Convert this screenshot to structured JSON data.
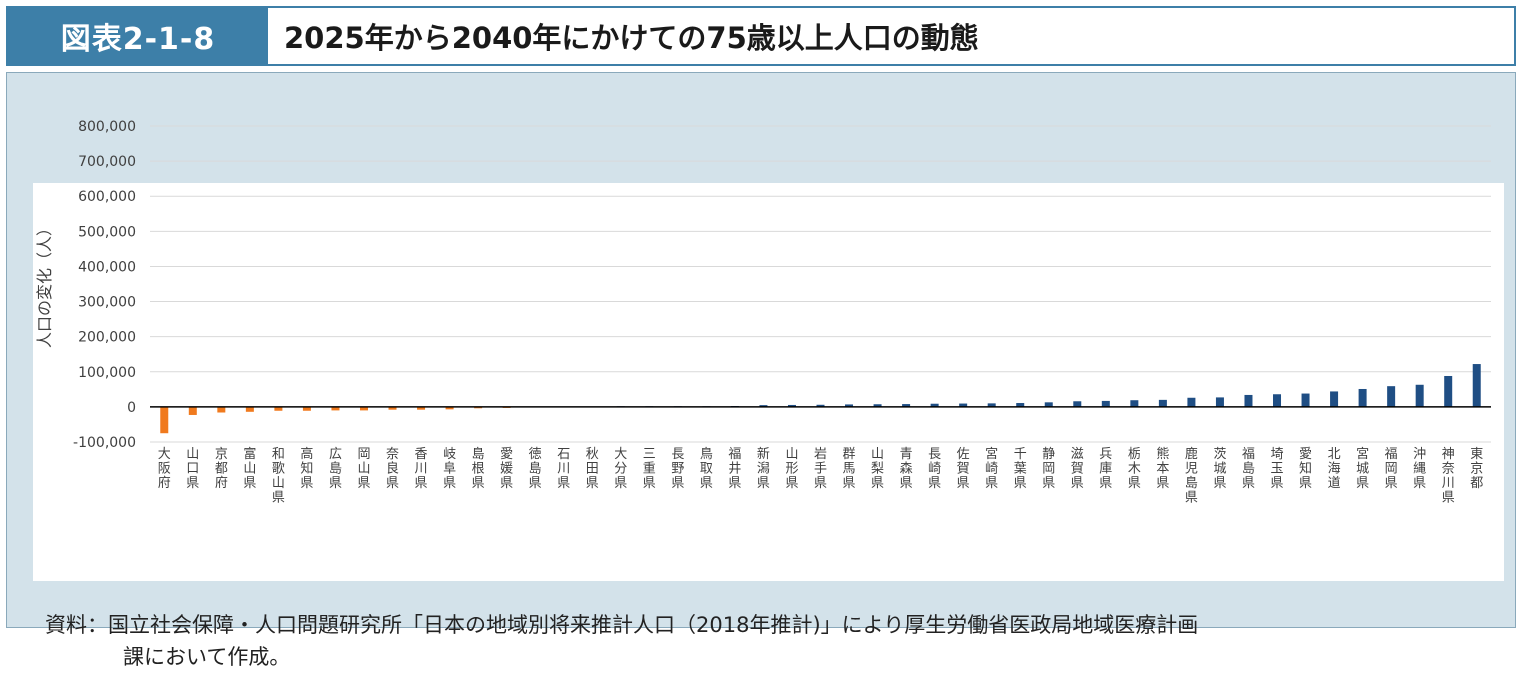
{
  "header": {
    "figure_number": "図表2-1-8",
    "title": "2025年から2040年にかけての75歳以上人口の動態"
  },
  "source": {
    "line1": "資料：国立社会保障・人口問題研究所「日本の地域別将来推計人口（2018年推計)」により厚生労働省医政局地域医療計画",
    "line2": "課において作成。"
  },
  "colors": {
    "negative": "#f07a1e",
    "positive": "#1f4e84",
    "grid": "#d9d9d9",
    "axis": "#000000"
  },
  "chart_data": {
    "type": "bar",
    "title": "",
    "xlabel": "",
    "ylabel": "人口の変化（人）",
    "ylim": [
      -100000,
      800000
    ],
    "yticks": [
      800000,
      700000,
      600000,
      500000,
      400000,
      300000,
      200000,
      100000,
      0,
      -100000
    ],
    "ytick_labels": [
      "800,000",
      "700,000",
      "600,000",
      "500,000",
      "400,000",
      "300,000",
      "200,000",
      "100,000",
      "0",
      "-100,000"
    ],
    "grid": true,
    "categories": [
      "大阪府",
      "山口県",
      "京都府",
      "富山県",
      "和歌山県",
      "高知県",
      "広島県",
      "岡山県",
      "奈良県",
      "香川県",
      "岐阜県",
      "島根県",
      "愛媛県",
      "徳島県",
      "石川県",
      "秋田県",
      "大分県",
      "三重県",
      "長野県",
      "鳥取県",
      "福井県",
      "新潟県",
      "山形県",
      "岩手県",
      "群馬県",
      "山梨県",
      "青森県",
      "長崎県",
      "佐賀県",
      "宮崎県",
      "千葉県",
      "静岡県",
      "滋賀県",
      "兵庫県",
      "栃木県",
      "熊本県",
      "鹿児島県",
      "茨城県",
      "福島県",
      "埼玉県",
      "愛知県",
      "北海道",
      "宮城県",
      "福岡県",
      "沖縄県",
      "神奈川県",
      "東京都"
    ],
    "values": [
      -75000,
      -23000,
      -16000,
      -14000,
      -11000,
      -11000,
      -10000,
      -10000,
      -8000,
      -8000,
      -7000,
      -4000,
      -3000,
      -1000,
      -500,
      -300,
      200,
      500,
      800,
      1500,
      2500,
      5000,
      5500,
      6000,
      7000,
      7500,
      8000,
      9000,
      9500,
      10000,
      11000,
      13000,
      16000,
      17000,
      19000,
      20000,
      26000,
      27000,
      34000,
      36000,
      38000,
      44000,
      51000,
      59000,
      63000,
      88000,
      122000
    ]
  }
}
